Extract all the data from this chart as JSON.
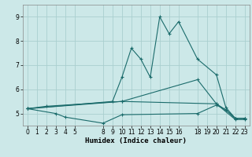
{
  "title": "",
  "xlabel": "Humidex (Indice chaleur)",
  "ylabel": "",
  "xlim": [
    -0.5,
    23.5
  ],
  "ylim": [
    4.5,
    9.5
  ],
  "yticks": [
    5,
    6,
    7,
    8,
    9
  ],
  "xticks": [
    0,
    1,
    2,
    3,
    4,
    5,
    8,
    9,
    10,
    11,
    12,
    13,
    14,
    15,
    16,
    18,
    19,
    20,
    21,
    22,
    23
  ],
  "bg_color": "#cce8e8",
  "line_color": "#1a6b6b",
  "grid_color": "#aacfcf",
  "lines": [
    {
      "x": [
        0,
        2,
        10,
        20,
        22,
        23
      ],
      "y": [
        5.2,
        5.3,
        5.5,
        5.4,
        4.75,
        4.75
      ]
    },
    {
      "x": [
        0,
        3,
        4,
        8,
        10,
        18,
        20,
        21,
        22,
        23
      ],
      "y": [
        5.2,
        5.0,
        4.85,
        4.6,
        4.95,
        5.0,
        5.35,
        5.15,
        4.8,
        4.8
      ]
    },
    {
      "x": [
        0,
        9,
        10,
        11,
        12,
        13,
        14,
        15,
        16,
        18,
        20,
        21,
        22,
        23
      ],
      "y": [
        5.2,
        5.5,
        6.5,
        7.7,
        7.25,
        6.5,
        9.0,
        8.3,
        8.8,
        7.25,
        6.6,
        5.25,
        4.8,
        4.8
      ]
    },
    {
      "x": [
        0,
        10,
        18,
        20,
        21,
        22,
        23
      ],
      "y": [
        5.2,
        5.5,
        6.4,
        5.4,
        5.15,
        4.8,
        4.8
      ]
    }
  ]
}
